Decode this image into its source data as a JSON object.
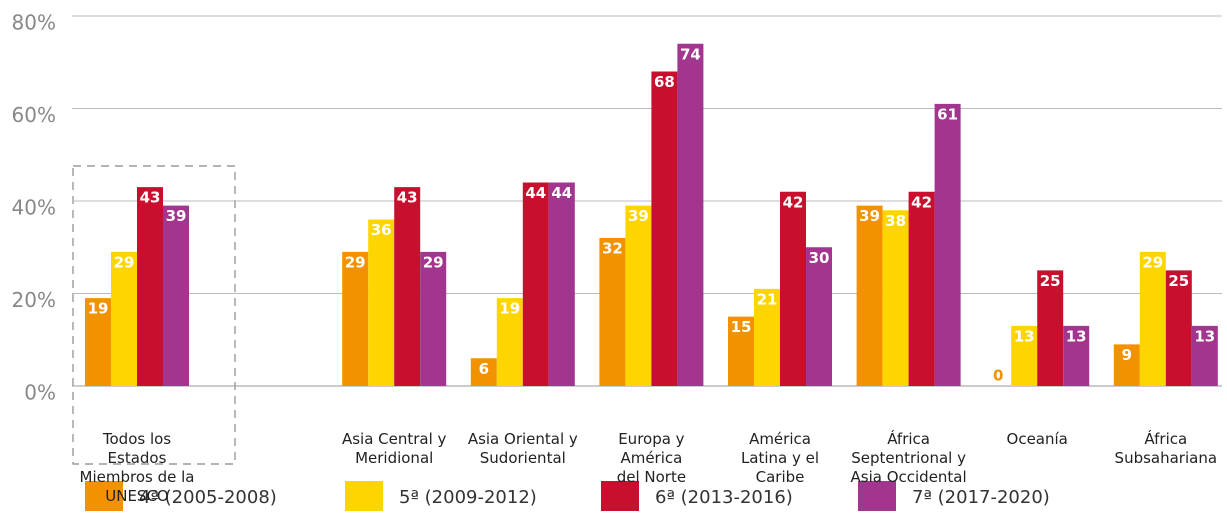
{
  "chart_data": {
    "type": "bar",
    "categories": [
      "Todos los Estados\nMiembros de la\nUNESCO",
      null,
      "Asia Central y\nMeridional",
      "Asia Oriental y\nSudoriental",
      "Europa y\nAmérica\ndel Norte",
      "América\nLatina y el\nCaribe",
      "África\nSeptentrional y\nAsia Occidental",
      "Oceanía",
      "África\nSubsahariana"
    ],
    "series": [
      {
        "name": "4ª (2005-2008)",
        "color": "#f39200",
        "values": [
          19,
          null,
          29,
          6,
          32,
          15,
          39,
          0,
          9
        ]
      },
      {
        "name": "5ª (2009-2012)",
        "color": "#ffd500",
        "values": [
          29,
          null,
          36,
          19,
          39,
          21,
          38,
          13,
          29
        ]
      },
      {
        "name": "6ª (2013-2016)",
        "color": "#c8102e",
        "values": [
          43,
          null,
          43,
          44,
          68,
          42,
          42,
          25,
          25
        ]
      },
      {
        "name": "7ª (2017-2020)",
        "color": "#a2358e",
        "values": [
          39,
          null,
          29,
          44,
          74,
          30,
          61,
          13,
          13
        ]
      }
    ],
    "ylim": [
      0,
      80
    ],
    "yticks": [
      {
        "value": 0,
        "label": "0%"
      },
      {
        "value": 20,
        "label": "20%"
      },
      {
        "value": 40,
        "label": "40%"
      },
      {
        "value": 60,
        "label": "60%"
      },
      {
        "value": 80,
        "label": "80%"
      }
    ],
    "grid": true
  }
}
